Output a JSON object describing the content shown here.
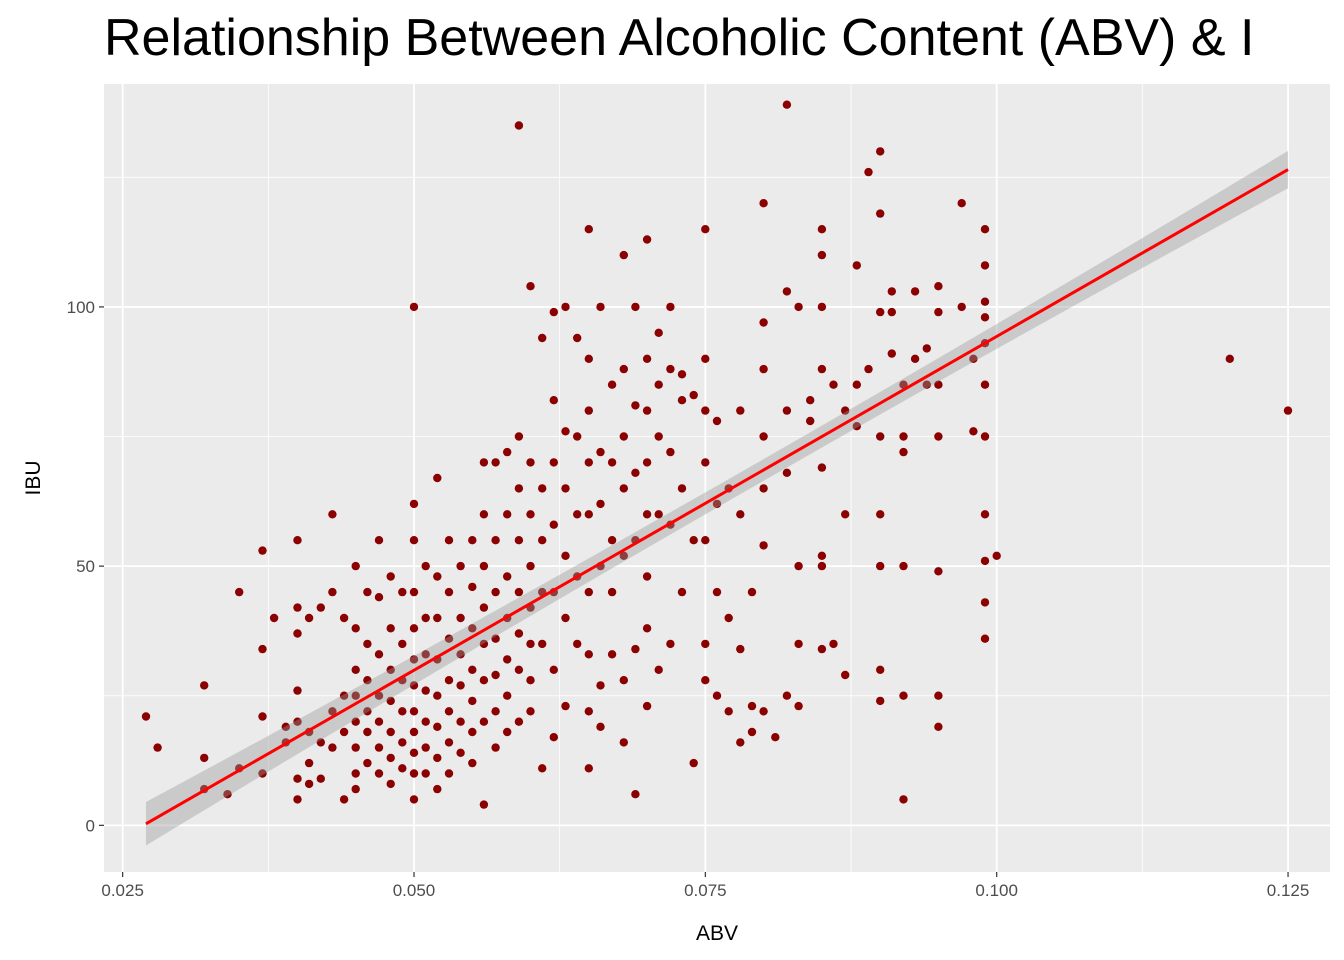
{
  "chart_data": {
    "type": "scatter",
    "title": "Relationship Between Alcoholic Content (ABV) & I",
    "xlabel": "ABV",
    "ylabel": "IBU",
    "xlim": [
      0.0234,
      0.1286
    ],
    "ylim": [
      -9,
      143
    ],
    "x_ticks": [
      0.025,
      0.05,
      0.075,
      0.1,
      0.125
    ],
    "x_tick_labels": [
      "0.025",
      "0.050",
      "0.075",
      "0.100",
      "0.125"
    ],
    "y_ticks": [
      0,
      50,
      100
    ],
    "y_tick_labels": [
      "0",
      "50",
      "100"
    ],
    "grid": true,
    "background": "#EBEBEB",
    "point_color": "#8B0000",
    "fit_line": {
      "color": "#FF0000",
      "band_color": "#999999",
      "x": [
        0.027,
        0.125
      ],
      "y": [
        0.3,
        126.5
      ],
      "se_start": 4.2,
      "se_end": 3.6
    },
    "points": [
      [
        0.027,
        21
      ],
      [
        0.028,
        15
      ],
      [
        0.032,
        27
      ],
      [
        0.032,
        13
      ],
      [
        0.032,
        7
      ],
      [
        0.034,
        6
      ],
      [
        0.035,
        45
      ],
      [
        0.035,
        11
      ],
      [
        0.037,
        53
      ],
      [
        0.037,
        34
      ],
      [
        0.037,
        21
      ],
      [
        0.037,
        10
      ],
      [
        0.038,
        40
      ],
      [
        0.039,
        19
      ],
      [
        0.039,
        16
      ],
      [
        0.04,
        55
      ],
      [
        0.04,
        42
      ],
      [
        0.04,
        37
      ],
      [
        0.04,
        26
      ],
      [
        0.04,
        20
      ],
      [
        0.04,
        9
      ],
      [
        0.04,
        5
      ],
      [
        0.041,
        40
      ],
      [
        0.041,
        18
      ],
      [
        0.041,
        12
      ],
      [
        0.041,
        8
      ],
      [
        0.042,
        42
      ],
      [
        0.042,
        16
      ],
      [
        0.042,
        9
      ],
      [
        0.043,
        60
      ],
      [
        0.043,
        45
      ],
      [
        0.043,
        22
      ],
      [
        0.043,
        15
      ],
      [
        0.044,
        40
      ],
      [
        0.044,
        25
      ],
      [
        0.044,
        18
      ],
      [
        0.044,
        5
      ],
      [
        0.045,
        50
      ],
      [
        0.045,
        38
      ],
      [
        0.045,
        30
      ],
      [
        0.045,
        25
      ],
      [
        0.045,
        20
      ],
      [
        0.045,
        15
      ],
      [
        0.045,
        10
      ],
      [
        0.045,
        7
      ],
      [
        0.046,
        45
      ],
      [
        0.046,
        35
      ],
      [
        0.046,
        28
      ],
      [
        0.046,
        22
      ],
      [
        0.046,
        18
      ],
      [
        0.046,
        12
      ],
      [
        0.047,
        55
      ],
      [
        0.047,
        44
      ],
      [
        0.047,
        33
      ],
      [
        0.047,
        25
      ],
      [
        0.047,
        20
      ],
      [
        0.047,
        15
      ],
      [
        0.047,
        10
      ],
      [
        0.048,
        48
      ],
      [
        0.048,
        38
      ],
      [
        0.048,
        30
      ],
      [
        0.048,
        24
      ],
      [
        0.048,
        18
      ],
      [
        0.048,
        13
      ],
      [
        0.048,
        8
      ],
      [
        0.049,
        45
      ],
      [
        0.049,
        35
      ],
      [
        0.049,
        28
      ],
      [
        0.049,
        22
      ],
      [
        0.049,
        16
      ],
      [
        0.049,
        11
      ],
      [
        0.05,
        62
      ],
      [
        0.05,
        100
      ],
      [
        0.05,
        55
      ],
      [
        0.05,
        45
      ],
      [
        0.05,
        38
      ],
      [
        0.05,
        32
      ],
      [
        0.05,
        27
      ],
      [
        0.05,
        22
      ],
      [
        0.05,
        18
      ],
      [
        0.05,
        14
      ],
      [
        0.05,
        10
      ],
      [
        0.05,
        5
      ],
      [
        0.051,
        50
      ],
      [
        0.051,
        40
      ],
      [
        0.051,
        33
      ],
      [
        0.051,
        26
      ],
      [
        0.051,
        20
      ],
      [
        0.051,
        15
      ],
      [
        0.051,
        10
      ],
      [
        0.052,
        67
      ],
      [
        0.052,
        48
      ],
      [
        0.052,
        40
      ],
      [
        0.052,
        32
      ],
      [
        0.052,
        25
      ],
      [
        0.052,
        19
      ],
      [
        0.052,
        13
      ],
      [
        0.052,
        7
      ],
      [
        0.053,
        55
      ],
      [
        0.053,
        45
      ],
      [
        0.053,
        36
      ],
      [
        0.053,
        28
      ],
      [
        0.053,
        22
      ],
      [
        0.053,
        16
      ],
      [
        0.053,
        10
      ],
      [
        0.054,
        50
      ],
      [
        0.054,
        40
      ],
      [
        0.054,
        33
      ],
      [
        0.054,
        27
      ],
      [
        0.054,
        20
      ],
      [
        0.054,
        14
      ],
      [
        0.055,
        55
      ],
      [
        0.055,
        46
      ],
      [
        0.055,
        38
      ],
      [
        0.055,
        30
      ],
      [
        0.055,
        24
      ],
      [
        0.055,
        18
      ],
      [
        0.055,
        12
      ],
      [
        0.056,
        70
      ],
      [
        0.056,
        60
      ],
      [
        0.056,
        50
      ],
      [
        0.056,
        42
      ],
      [
        0.056,
        35
      ],
      [
        0.056,
        28
      ],
      [
        0.056,
        20
      ],
      [
        0.056,
        4
      ],
      [
        0.057,
        70
      ],
      [
        0.057,
        55
      ],
      [
        0.057,
        45
      ],
      [
        0.057,
        36
      ],
      [
        0.057,
        29
      ],
      [
        0.057,
        22
      ],
      [
        0.057,
        15
      ],
      [
        0.058,
        72
      ],
      [
        0.058,
        60
      ],
      [
        0.058,
        48
      ],
      [
        0.058,
        40
      ],
      [
        0.058,
        32
      ],
      [
        0.058,
        25
      ],
      [
        0.058,
        18
      ],
      [
        0.059,
        135
      ],
      [
        0.059,
        75
      ],
      [
        0.059,
        65
      ],
      [
        0.059,
        55
      ],
      [
        0.059,
        45
      ],
      [
        0.059,
        37
      ],
      [
        0.059,
        30
      ],
      [
        0.059,
        20
      ],
      [
        0.06,
        104
      ],
      [
        0.06,
        70
      ],
      [
        0.06,
        60
      ],
      [
        0.06,
        50
      ],
      [
        0.06,
        42
      ],
      [
        0.06,
        35
      ],
      [
        0.06,
        28
      ],
      [
        0.06,
        22
      ],
      [
        0.061,
        94
      ],
      [
        0.061,
        65
      ],
      [
        0.061,
        55
      ],
      [
        0.061,
        45
      ],
      [
        0.061,
        35
      ],
      [
        0.061,
        11
      ],
      [
        0.062,
        99
      ],
      [
        0.062,
        82
      ],
      [
        0.062,
        70
      ],
      [
        0.062,
        58
      ],
      [
        0.062,
        45
      ],
      [
        0.062,
        30
      ],
      [
        0.062,
        17
      ],
      [
        0.063,
        100
      ],
      [
        0.063,
        76
      ],
      [
        0.063,
        65
      ],
      [
        0.063,
        52
      ],
      [
        0.063,
        40
      ],
      [
        0.063,
        23
      ],
      [
        0.064,
        94
      ],
      [
        0.064,
        75
      ],
      [
        0.064,
        60
      ],
      [
        0.064,
        48
      ],
      [
        0.064,
        35
      ],
      [
        0.065,
        115
      ],
      [
        0.065,
        90
      ],
      [
        0.065,
        80
      ],
      [
        0.065,
        70
      ],
      [
        0.065,
        60
      ],
      [
        0.065,
        45
      ],
      [
        0.065,
        33
      ],
      [
        0.065,
        22
      ],
      [
        0.065,
        11
      ],
      [
        0.066,
        100
      ],
      [
        0.066,
        72
      ],
      [
        0.066,
        62
      ],
      [
        0.066,
        50
      ],
      [
        0.066,
        27
      ],
      [
        0.066,
        19
      ],
      [
        0.067,
        85
      ],
      [
        0.067,
        70
      ],
      [
        0.067,
        55
      ],
      [
        0.067,
        45
      ],
      [
        0.067,
        33
      ],
      [
        0.068,
        110
      ],
      [
        0.068,
        88
      ],
      [
        0.068,
        75
      ],
      [
        0.068,
        65
      ],
      [
        0.068,
        52
      ],
      [
        0.068,
        28
      ],
      [
        0.068,
        16
      ],
      [
        0.069,
        100
      ],
      [
        0.069,
        81
      ],
      [
        0.069,
        68
      ],
      [
        0.069,
        55
      ],
      [
        0.069,
        34
      ],
      [
        0.069,
        6
      ],
      [
        0.07,
        113
      ],
      [
        0.07,
        90
      ],
      [
        0.07,
        80
      ],
      [
        0.07,
        70
      ],
      [
        0.07,
        60
      ],
      [
        0.07,
        48
      ],
      [
        0.07,
        38
      ],
      [
        0.07,
        23
      ],
      [
        0.071,
        95
      ],
      [
        0.071,
        85
      ],
      [
        0.071,
        75
      ],
      [
        0.071,
        60
      ],
      [
        0.071,
        30
      ],
      [
        0.072,
        100
      ],
      [
        0.072,
        88
      ],
      [
        0.072,
        72
      ],
      [
        0.072,
        58
      ],
      [
        0.072,
        35
      ],
      [
        0.073,
        87
      ],
      [
        0.073,
        82
      ],
      [
        0.073,
        65
      ],
      [
        0.073,
        45
      ],
      [
        0.074,
        83
      ],
      [
        0.074,
        55
      ],
      [
        0.074,
        12
      ],
      [
        0.075,
        115
      ],
      [
        0.075,
        90
      ],
      [
        0.075,
        80
      ],
      [
        0.075,
        70
      ],
      [
        0.075,
        55
      ],
      [
        0.075,
        35
      ],
      [
        0.075,
        28
      ],
      [
        0.076,
        78
      ],
      [
        0.076,
        62
      ],
      [
        0.076,
        45
      ],
      [
        0.076,
        25
      ],
      [
        0.077,
        65
      ],
      [
        0.077,
        40
      ],
      [
        0.077,
        22
      ],
      [
        0.078,
        80
      ],
      [
        0.078,
        60
      ],
      [
        0.078,
        34
      ],
      [
        0.078,
        16
      ],
      [
        0.079,
        45
      ],
      [
        0.079,
        23
      ],
      [
        0.079,
        18
      ],
      [
        0.08,
        120
      ],
      [
        0.08,
        97
      ],
      [
        0.08,
        88
      ],
      [
        0.08,
        75
      ],
      [
        0.08,
        65
      ],
      [
        0.08,
        54
      ],
      [
        0.08,
        22
      ],
      [
        0.081,
        17
      ],
      [
        0.082,
        139
      ],
      [
        0.082,
        103
      ],
      [
        0.082,
        80
      ],
      [
        0.082,
        68
      ],
      [
        0.082,
        25
      ],
      [
        0.083,
        100
      ],
      [
        0.083,
        50
      ],
      [
        0.083,
        35
      ],
      [
        0.083,
        23
      ],
      [
        0.084,
        82
      ],
      [
        0.084,
        78
      ],
      [
        0.085,
        115
      ],
      [
        0.085,
        110
      ],
      [
        0.085,
        100
      ],
      [
        0.085,
        88
      ],
      [
        0.085,
        69
      ],
      [
        0.085,
        52
      ],
      [
        0.085,
        50
      ],
      [
        0.085,
        34
      ],
      [
        0.086,
        85
      ],
      [
        0.086,
        35
      ],
      [
        0.087,
        80
      ],
      [
        0.087,
        60
      ],
      [
        0.087,
        29
      ],
      [
        0.088,
        108
      ],
      [
        0.088,
        85
      ],
      [
        0.088,
        77
      ],
      [
        0.089,
        126
      ],
      [
        0.089,
        88
      ],
      [
        0.09,
        130
      ],
      [
        0.09,
        118
      ],
      [
        0.09,
        99
      ],
      [
        0.09,
        75
      ],
      [
        0.09,
        60
      ],
      [
        0.09,
        50
      ],
      [
        0.09,
        30
      ],
      [
        0.09,
        24
      ],
      [
        0.091,
        103
      ],
      [
        0.091,
        99
      ],
      [
        0.091,
        91
      ],
      [
        0.092,
        85
      ],
      [
        0.092,
        75
      ],
      [
        0.092,
        72
      ],
      [
        0.092,
        50
      ],
      [
        0.092,
        25
      ],
      [
        0.092,
        5
      ],
      [
        0.093,
        103
      ],
      [
        0.093,
        90
      ],
      [
        0.094,
        92
      ],
      [
        0.094,
        85
      ],
      [
        0.095,
        104
      ],
      [
        0.095,
        99
      ],
      [
        0.095,
        85
      ],
      [
        0.095,
        75
      ],
      [
        0.095,
        49
      ],
      [
        0.095,
        25
      ],
      [
        0.095,
        19
      ],
      [
        0.097,
        120
      ],
      [
        0.097,
        100
      ],
      [
        0.098,
        90
      ],
      [
        0.098,
        76
      ],
      [
        0.099,
        115
      ],
      [
        0.099,
        108
      ],
      [
        0.099,
        101
      ],
      [
        0.099,
        98
      ],
      [
        0.099,
        93
      ],
      [
        0.099,
        85
      ],
      [
        0.099,
        75
      ],
      [
        0.099,
        60
      ],
      [
        0.099,
        51
      ],
      [
        0.099,
        43
      ],
      [
        0.099,
        36
      ],
      [
        0.1,
        52
      ],
      [
        0.12,
        90
      ],
      [
        0.125,
        80
      ]
    ]
  }
}
